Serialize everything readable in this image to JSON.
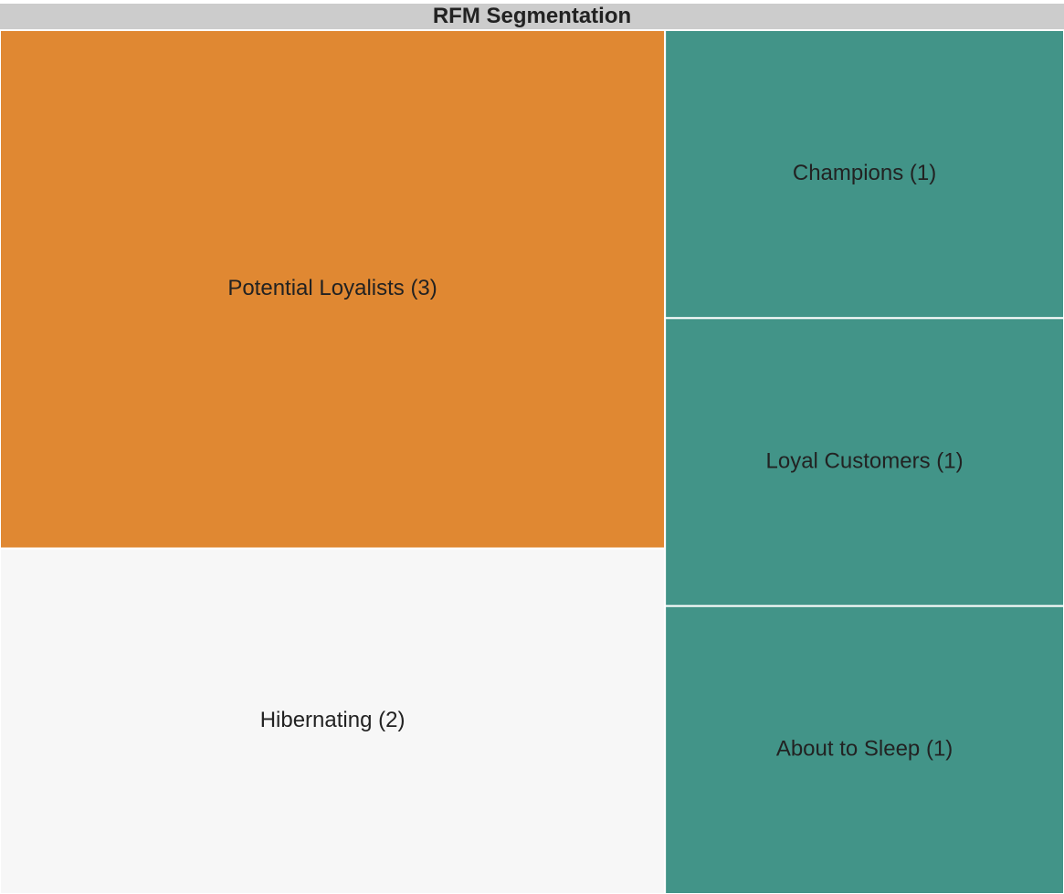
{
  "chart_data": {
    "type": "treemap",
    "title": "RFM Segmentation",
    "segments": [
      {
        "name": "Potential Loyalists",
        "count": 3,
        "label": "Potential Loyalists (3)",
        "color": "#e08832"
      },
      {
        "name": "Hibernating",
        "count": 2,
        "label": "Hibernating (2)",
        "color": "#f7f7f7"
      },
      {
        "name": "Champions",
        "count": 1,
        "label": "Champions (1)",
        "color": "#429488"
      },
      {
        "name": "Loyal Customers",
        "count": 1,
        "label": "Loyal Customers (1)",
        "color": "#429488"
      },
      {
        "name": "About to Sleep",
        "count": 1,
        "label": "About to Sleep (1)",
        "color": "#429488"
      }
    ]
  },
  "colors": {
    "title_background": "#cccccc",
    "text": "#222222",
    "border": "#ffffff"
  }
}
